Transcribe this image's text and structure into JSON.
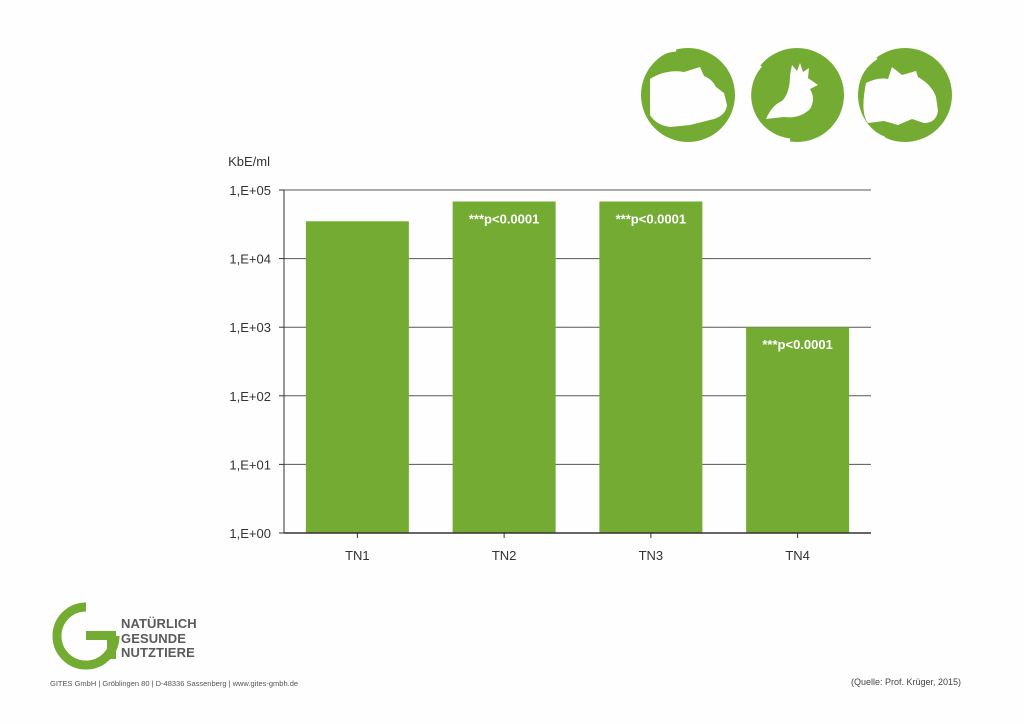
{
  "chart_data": {
    "type": "bar",
    "ylabel": "KbE/ml",
    "y_scale": "log",
    "ylim": [
      1,
      100000
    ],
    "y_ticks": [
      "1,E+00",
      "1,E+01",
      "1,E+02",
      "1,E+03",
      "1,E+04",
      "1,E+05"
    ],
    "categories": [
      "TN1",
      "TN2",
      "TN3",
      "TN4"
    ],
    "values": [
      35000,
      68000,
      68000,
      1000
    ],
    "bar_labels": [
      "",
      "***p<0.0001",
      "***p<0.0001",
      "***p<0.0001"
    ],
    "bar_color": "#74ac33",
    "grid": true
  },
  "icons": [
    "pig-icon",
    "chicken-icon",
    "cow-icon"
  ],
  "brand": {
    "color": "#74ac33",
    "logo_lines": [
      "NATÜRLICH",
      "GESUNDE",
      "NUTZTIERE"
    ]
  },
  "footer": {
    "address": "GITES GmbH | Gröblingen 80 | D-48336 Sassenberg | www.gites-gmbh.de",
    "source": "(Quelle: Prof. Krüger, 2015)"
  }
}
